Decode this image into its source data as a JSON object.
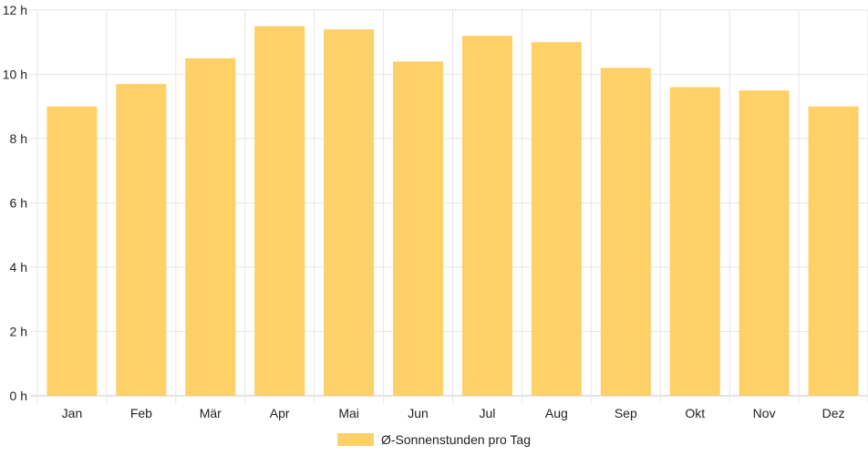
{
  "chart_data": {
    "type": "bar",
    "categories": [
      "Jan",
      "Feb",
      "Mär",
      "Apr",
      "Mai",
      "Jun",
      "Jul",
      "Aug",
      "Sep",
      "Okt",
      "Nov",
      "Dez"
    ],
    "series": [
      {
        "name": "Ø-Sonnenstunden pro Tag",
        "values": [
          9.0,
          9.7,
          10.5,
          11.5,
          11.4,
          10.4,
          11.2,
          11.0,
          10.2,
          9.6,
          9.5,
          9.0
        ],
        "color": "#fdd068"
      }
    ],
    "y_ticks": [
      "0 h",
      "2 h",
      "4 h",
      "6 h",
      "8 h",
      "10 h",
      "12 h"
    ],
    "ylim": [
      0,
      12
    ],
    "grid": true,
    "legend_position": "bottom"
  }
}
